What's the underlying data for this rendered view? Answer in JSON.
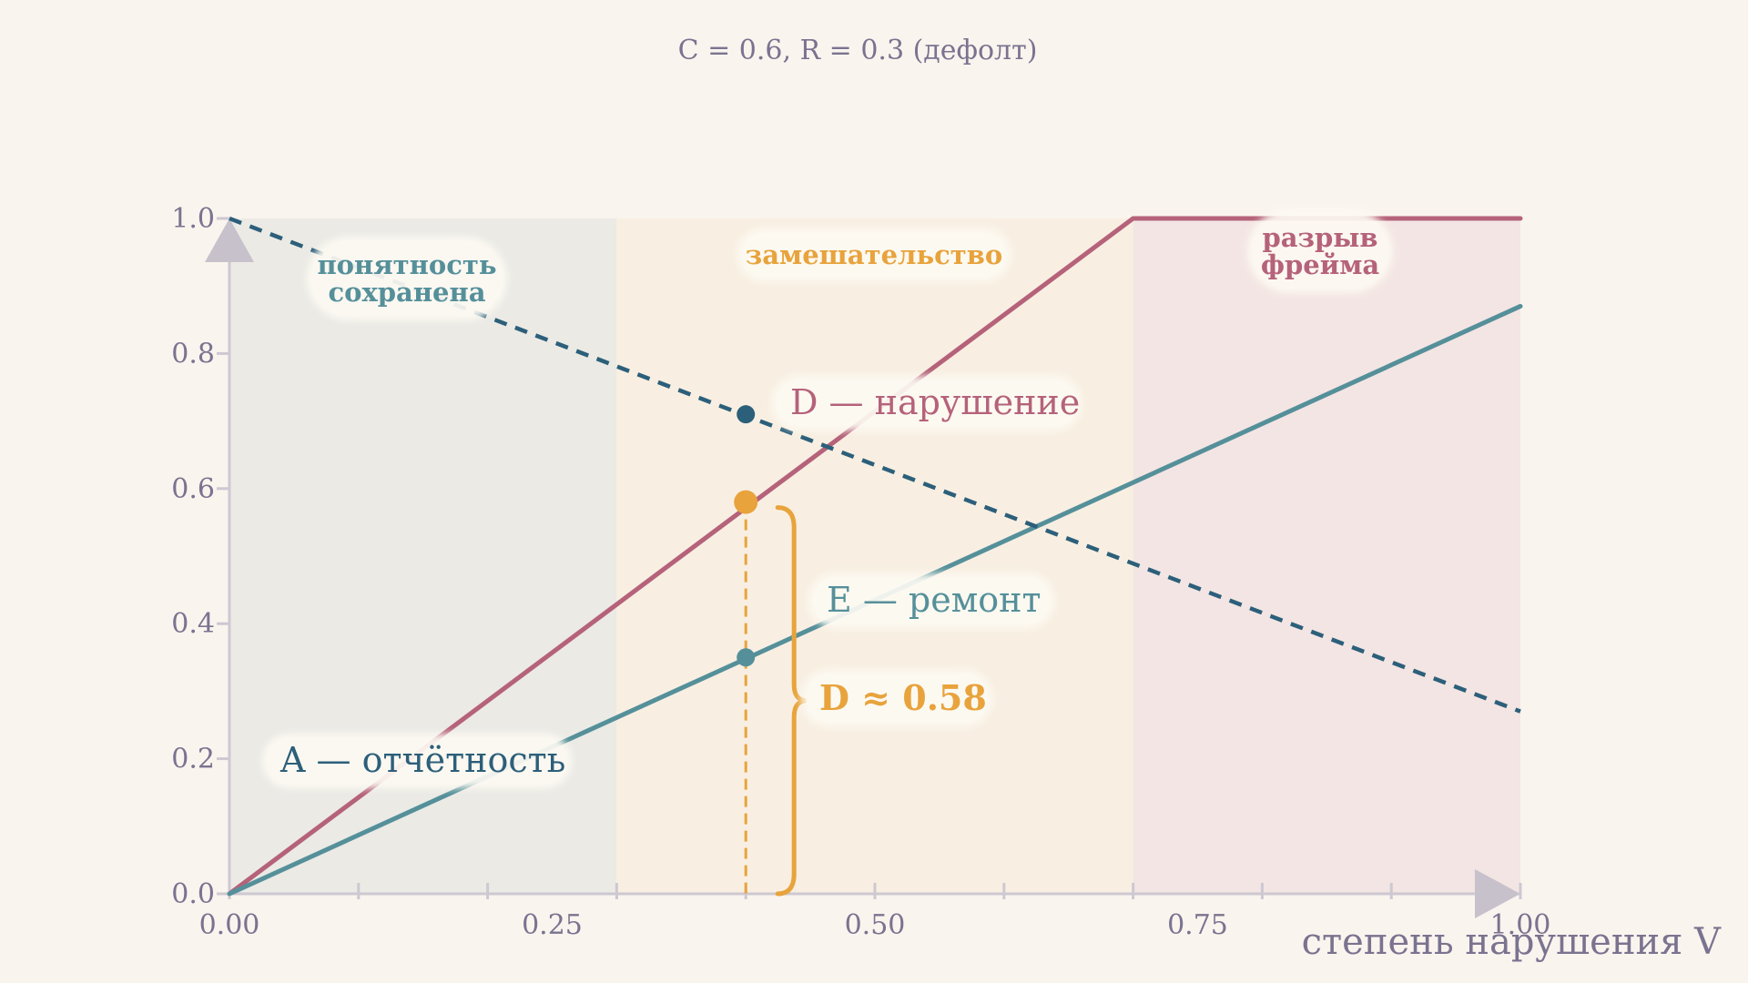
{
  "chart_data": {
    "type": "line",
    "title": "C = 0.6,  R = 0.3  (дефолт)",
    "xlabel": "степень  нарушения V",
    "ylabel": "",
    "xlim": [
      0,
      1
    ],
    "ylim": [
      0,
      1
    ],
    "x_ticks": [
      "0.00",
      "0.25",
      "0.50",
      "0.75",
      "1.00"
    ],
    "y_ticks": [
      "0.0",
      "0.2",
      "0.4",
      "0.6",
      "0.8",
      "1.0"
    ],
    "grid": false,
    "regions": [
      {
        "label_lines": [
          "понятность",
          "сохранена"
        ],
        "x_from": 0.0,
        "x_to": 0.3,
        "color": "#ebeae5",
        "label_color": "#55909a"
      },
      {
        "label_lines": [
          "замешательство"
        ],
        "x_from": 0.3,
        "x_to": 0.7,
        "color": "#f8efe2",
        "label_color": "#e8a33c"
      },
      {
        "label_lines": [
          "разрыв",
          "фрейма"
        ],
        "x_from": 0.7,
        "x_to": 1.0,
        "color": "#f3e5e3",
        "label_color": "#b5627a"
      }
    ],
    "series": [
      {
        "name": "D — нарушение",
        "color": "#b5627a",
        "style": "solid",
        "x": [
          0,
          0.7,
          1.0
        ],
        "y": [
          0,
          1.0,
          1.0
        ]
      },
      {
        "name": "E — ремонт",
        "color": "#55909a",
        "style": "solid",
        "x": [
          0,
          1.0
        ],
        "y": [
          0,
          0.87
        ]
      },
      {
        "name": "A — отчётность",
        "color": "#2c5f7a",
        "style": "dashed",
        "x": [
          0,
          1.0
        ],
        "y": [
          1.0,
          0.27
        ]
      }
    ],
    "marker": {
      "x": 0.4,
      "points": [
        {
          "series": "D — нарушение",
          "y": 0.58,
          "color": "#e8a33c"
        },
        {
          "series": "E — ремонт",
          "y": 0.35,
          "color": "#55909a"
        },
        {
          "series": "A — отчётность",
          "y": 0.71,
          "color": "#2c5f7a"
        }
      ]
    },
    "annotation": {
      "text": "D  ≈  0.58",
      "value": 0.58,
      "color": "#e8a33c"
    }
  }
}
